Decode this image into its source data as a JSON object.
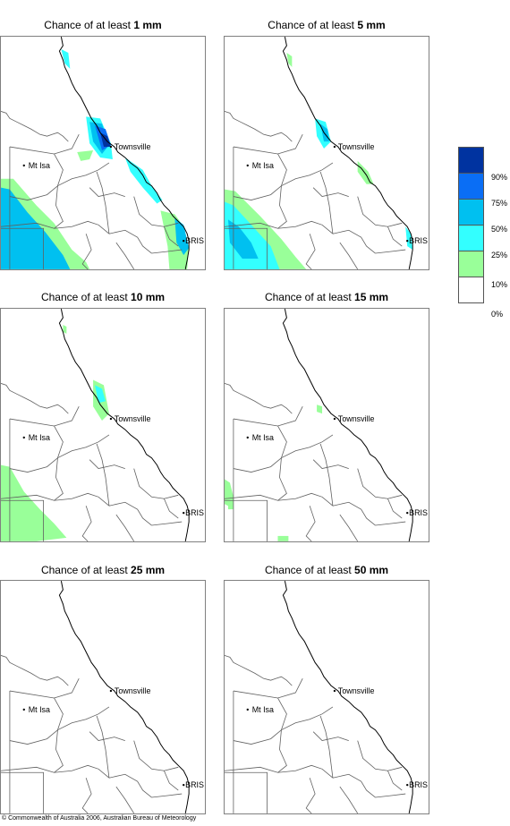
{
  "panels": [
    {
      "prefix": "Chance of at least ",
      "amount": "1 mm",
      "level": 1
    },
    {
      "prefix": "Chance of at least ",
      "amount": "5 mm",
      "level": 2
    },
    {
      "prefix": "Chance of at least ",
      "amount": "10 mm",
      "level": 3
    },
    {
      "prefix": "Chance of at least ",
      "amount": "15 mm",
      "level": 4
    },
    {
      "prefix": "Chance of at least ",
      "amount": "25 mm",
      "level": 5
    },
    {
      "prefix": "Chance of at least ",
      "amount": "50 mm",
      "level": 6
    }
  ],
  "places": {
    "townsville": "Townsville",
    "mt_isa": "Mt Isa",
    "brisbane": "BRIS"
  },
  "legend": {
    "bins": [
      {
        "color": "#0033a0"
      },
      {
        "color": "#0a6ef5"
      },
      {
        "color": "#00c0f0"
      },
      {
        "color": "#33ffff"
      },
      {
        "color": "#99ff99"
      },
      {
        "color": "#ffffff"
      }
    ],
    "labels": [
      "90%",
      "75%",
      "50%",
      "25%",
      "10%",
      "0%"
    ]
  },
  "credit": "© Commonwealth of Australia 2006, Australian Bureau of Meteorology"
}
